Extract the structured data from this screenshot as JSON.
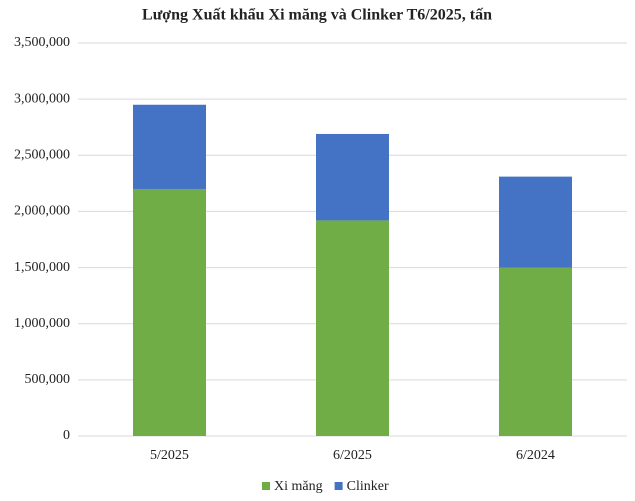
{
  "chart_data": {
    "type": "stacked_bar",
    "title": "Lượng Xuất khẩu Xi măng và Clinker T6/2025, tấn",
    "categories": [
      "5/2025",
      "6/2025",
      "6/2024"
    ],
    "series": [
      {
        "name": "Xi măng",
        "color": "#70ad47",
        "values": [
          2200000,
          1920000,
          1500000
        ]
      },
      {
        "name": "Clinker",
        "color": "#4472c4",
        "values": [
          750000,
          770000,
          810000
        ]
      }
    ],
    "ylim": [
      0,
      3500000
    ],
    "yticks": [
      0,
      {
        "value": 500000,
        "label": "500,000"
      },
      {
        "value": 1000000,
        "label": "1,000,000"
      },
      {
        "value": 1500000,
        "label": "1,500,000"
      },
      {
        "value": 2000000,
        "label": "2,000,000"
      },
      {
        "value": 2500000,
        "label": "2,500,000"
      },
      {
        "value": 3000000,
        "label": "3,000,000"
      },
      {
        "value": 3500000,
        "label": "3,500,000"
      }
    ],
    "grid": true
  }
}
